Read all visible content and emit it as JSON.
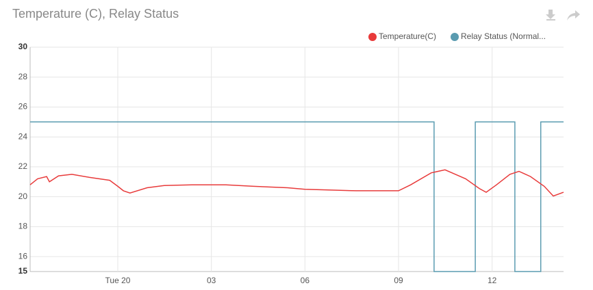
{
  "chart_data": {
    "type": "line",
    "title": "Temperature (C), Relay Status",
    "xlim": [
      -2.81,
      14.29
    ],
    "xticks": [
      {
        "value": 0,
        "label": "Tue 20"
      },
      {
        "value": 3,
        "label": "03"
      },
      {
        "value": 6,
        "label": "06"
      },
      {
        "value": 9,
        "label": "09"
      },
      {
        "value": 12,
        "label": "12"
      }
    ],
    "ylim": [
      15,
      30
    ],
    "yticks": [
      15,
      16,
      18,
      20,
      22,
      24,
      26,
      28,
      30
    ],
    "grid": true,
    "legend": "top-right",
    "series": [
      {
        "name": "Temperature(C)",
        "color": "#e83a3a",
        "x": [
          -2.81,
          -2.57,
          -2.28,
          -2.19,
          -1.9,
          -1.47,
          -0.92,
          -0.26,
          0,
          0.18,
          0.39,
          0.94,
          1.49,
          2.37,
          3.47,
          4.35,
          5.44,
          6.0,
          6.76,
          7.64,
          9.0,
          9.39,
          10.05,
          10.49,
          11.15,
          11.59,
          11.81,
          12.14,
          12.57,
          12.86,
          13.23,
          13.67,
          13.96,
          14.29
        ],
        "values": [
          20.8,
          21.2,
          21.35,
          21.0,
          21.4,
          21.5,
          21.3,
          21.1,
          20.7,
          20.4,
          20.25,
          20.6,
          20.75,
          20.8,
          20.8,
          20.7,
          20.6,
          20.5,
          20.45,
          20.4,
          20.4,
          20.8,
          21.6,
          21.8,
          21.2,
          20.55,
          20.3,
          20.8,
          21.5,
          21.7,
          21.35,
          20.7,
          20.05,
          20.3
        ]
      },
      {
        "name": "Relay Status (Normal...",
        "color": "#5a9bb0",
        "x": [
          -2.81,
          10.14,
          10.14,
          11.46,
          11.46,
          12.73,
          12.73,
          13.56,
          13.56,
          14.29
        ],
        "values": [
          25,
          25,
          15,
          15,
          25,
          25,
          15,
          15,
          25,
          25
        ]
      }
    ]
  }
}
